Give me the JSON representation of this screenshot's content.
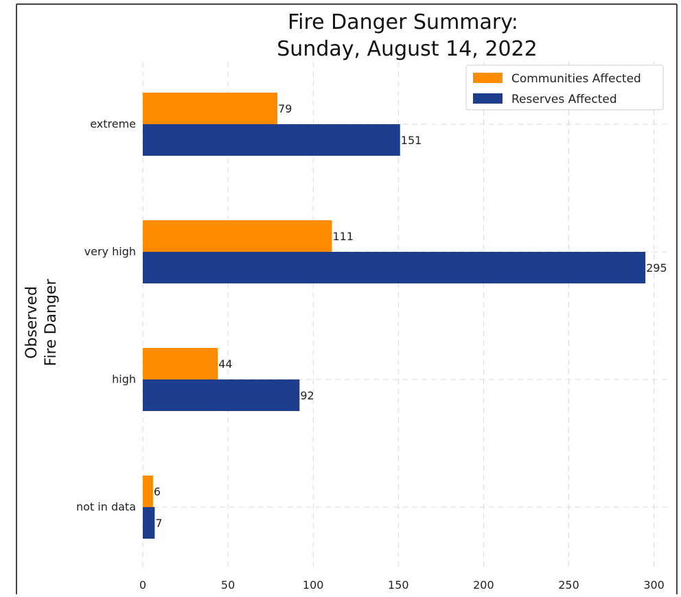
{
  "chart_data": {
    "type": "bar",
    "orientation": "horizontal",
    "title": "Fire Danger Summary:",
    "subtitle": "Sunday, August 14, 2022",
    "xlabel": "",
    "ylabel_lines": [
      "Observed",
      "Fire Danger"
    ],
    "categories": [
      "extreme",
      "very high",
      "high",
      "not in data"
    ],
    "series": [
      {
        "name": "Communities Affected",
        "values": [
          79,
          111,
          44,
          6
        ],
        "color": "#ff8c00"
      },
      {
        "name": "Reserves Affected",
        "values": [
          151,
          295,
          92,
          7
        ],
        "color": "#1f3d8f"
      }
    ],
    "xlim": [
      0,
      310
    ],
    "xticks": [
      0,
      50,
      100,
      150,
      200,
      250,
      300
    ],
    "grid": true,
    "legend_position": "top-right",
    "data_labels": true
  }
}
